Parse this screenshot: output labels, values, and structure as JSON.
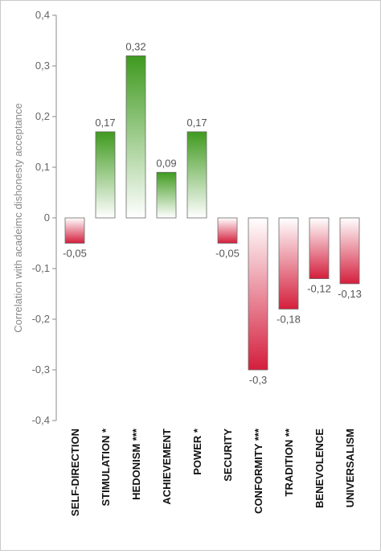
{
  "chart_data": {
    "type": "bar",
    "ylabel": "Correlation with acadeimc dishonesty acceptance",
    "ylim": [
      -0.4,
      0.4
    ],
    "yticks": [
      0.4,
      0.3,
      0.2,
      0.1,
      0,
      -0.1,
      -0.2,
      -0.3,
      -0.4
    ],
    "ytick_labels": [
      "0,4",
      "0,3",
      "0,2",
      "0,1",
      "0",
      "-0,1",
      "-0,2",
      "-0,3",
      "-0,4"
    ],
    "categories": [
      "SELF-DIRECTION",
      "STIMULATION *",
      "HEDONISM ***",
      "ACHIEVEMENT",
      "POWER *",
      "SECURITY",
      "CONFORMITY ***",
      "TRADITION **",
      "BENEVOLENCE",
      "UNIVERSALISM"
    ],
    "values": [
      -0.05,
      0.17,
      0.32,
      0.09,
      0.17,
      -0.05,
      -0.3,
      -0.18,
      -0.12,
      -0.13
    ],
    "value_labels": [
      "-0,05",
      "0,17",
      "0,32",
      "0,09",
      "0,17",
      "-0,05",
      "-0,3",
      "-0,18",
      "-0,12",
      "-0,13"
    ],
    "grid": false,
    "colors": {
      "positive_strong": "#3f9a1e",
      "positive_light": "#ffffff",
      "negative_strong": "#d41e3c",
      "negative_light": "#ffffff",
      "bar_outline": "#6b6b6b",
      "axis": "#888888"
    }
  }
}
